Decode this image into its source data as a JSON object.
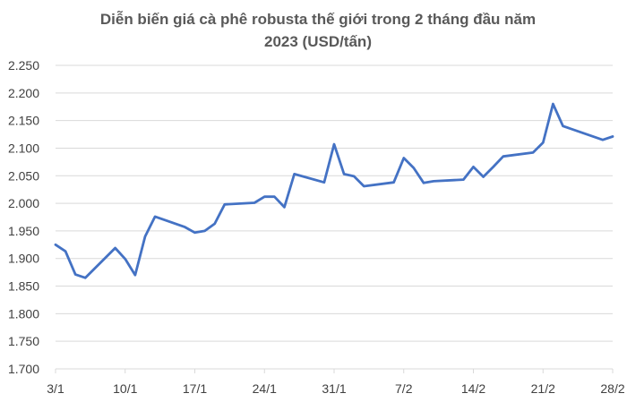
{
  "chart_data": {
    "type": "line",
    "title_lines": [
      "Diễn biến giá cà phê robusta thế giới trong 2 tháng đầu năm",
      "2023 (USD/tấn)"
    ],
    "xlabel": "",
    "ylabel": "",
    "ylim": [
      1700,
      2250
    ],
    "yticks": [
      1700,
      1750,
      1800,
      1850,
      1900,
      1950,
      2000,
      2050,
      2100,
      2150,
      2200,
      2250
    ],
    "ytick_labels": [
      "1.700",
      "1.750",
      "1.800",
      "1.850",
      "1.900",
      "1.950",
      "2.000",
      "2.050",
      "2.100",
      "2.150",
      "2.200",
      "2.250"
    ],
    "xlim": [
      "2023-01-03",
      "2023-02-28"
    ],
    "xticks": [
      "2023-01-03",
      "2023-01-10",
      "2023-01-17",
      "2023-01-24",
      "2023-01-31",
      "2023-02-07",
      "2023-02-14",
      "2023-02-21",
      "2023-02-28"
    ],
    "xtick_labels": [
      "3/1",
      "10/1",
      "17/1",
      "24/1",
      "31/1",
      "7/2",
      "14/2",
      "21/2",
      "28/2"
    ],
    "grid": "horizontal",
    "line_color": "#4472C4",
    "grid_color": "#D9D9D9",
    "series": [
      {
        "x": [
          "2023-01-03",
          "2023-01-04",
          "2023-01-05",
          "2023-01-06",
          "2023-01-09",
          "2023-01-10",
          "2023-01-11",
          "2023-01-12",
          "2023-01-13",
          "2023-01-16",
          "2023-01-17",
          "2023-01-18",
          "2023-01-19",
          "2023-01-20",
          "2023-01-23",
          "2023-01-24",
          "2023-01-25",
          "2023-01-26",
          "2023-01-27",
          "2023-01-30",
          "2023-01-31",
          "2023-02-01",
          "2023-02-02",
          "2023-02-03",
          "2023-02-06",
          "2023-02-07",
          "2023-02-08",
          "2023-02-09",
          "2023-02-10",
          "2023-02-13",
          "2023-02-14",
          "2023-02-15",
          "2023-02-16",
          "2023-02-17",
          "2023-02-20",
          "2023-02-21",
          "2023-02-22",
          "2023-02-23",
          "2023-02-27",
          "2023-02-28"
        ],
        "values": [
          1925,
          1913,
          1871,
          1865,
          1919,
          1899,
          1870,
          1940,
          1976,
          1957,
          1947,
          1950,
          1963,
          1998,
          2001,
          2012,
          2012,
          1993,
          2053,
          2038,
          2107,
          2053,
          2049,
          2031,
          2038,
          2082,
          2064,
          2037,
          2040,
          2043,
          2066,
          2048,
          2066,
          2085,
          2092,
          2110,
          2180,
          2140,
          2115,
          2121
        ]
      }
    ]
  }
}
